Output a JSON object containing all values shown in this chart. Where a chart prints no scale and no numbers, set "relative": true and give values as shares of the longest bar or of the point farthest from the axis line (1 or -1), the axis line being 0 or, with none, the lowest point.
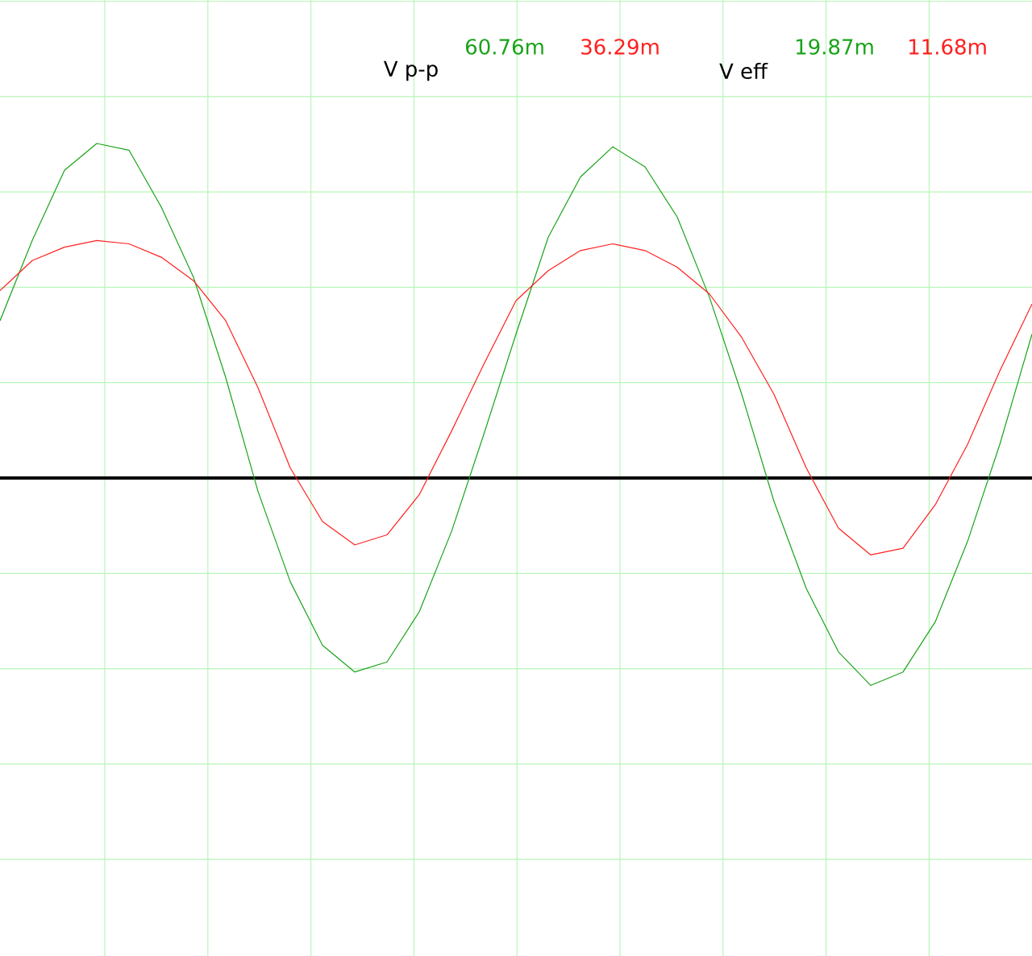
{
  "chart_data": {
    "type": "line",
    "relative": true,
    "grid": true,
    "categories": [
      null,
      null,
      null,
      null,
      null,
      null,
      null,
      null,
      null,
      null,
      null,
      null,
      null,
      null,
      null,
      null,
      null,
      null,
      null,
      null,
      null,
      null,
      null,
      null,
      null,
      null,
      null,
      null,
      null,
      null,
      null,
      null,
      null
    ],
    "series": [
      {
        "color": "#1aa31a",
        "values": [
          0.47,
          0.71,
          0.92,
          1.0,
          0.98,
          0.81,
          0.6,
          0.3,
          -0.04,
          -0.31,
          -0.5,
          -0.58,
          -0.55,
          -0.4,
          -0.16,
          0.13,
          0.43,
          0.72,
          0.9,
          0.99,
          0.93,
          0.78,
          0.54,
          0.25,
          -0.07,
          -0.33,
          -0.52,
          -0.62,
          -0.58,
          -0.43,
          -0.19,
          0.1,
          0.43
        ]
      },
      {
        "color": "#ff2020",
        "values": [
          0.56,
          0.65,
          0.69,
          0.71,
          0.7,
          0.66,
          0.59,
          0.47,
          0.27,
          0.03,
          -0.13,
          -0.2,
          -0.17,
          -0.05,
          0.14,
          0.34,
          0.53,
          0.62,
          0.68,
          0.7,
          0.68,
          0.63,
          0.55,
          0.42,
          0.25,
          0.03,
          -0.15,
          -0.23,
          -0.21,
          -0.08,
          0.1,
          0.32,
          0.52
        ]
      }
    ],
    "annotations": [
      "V p-p",
      "60.76m",
      "36.29m",
      "V eff",
      "19.87m",
      "11.68m"
    ]
  }
}
